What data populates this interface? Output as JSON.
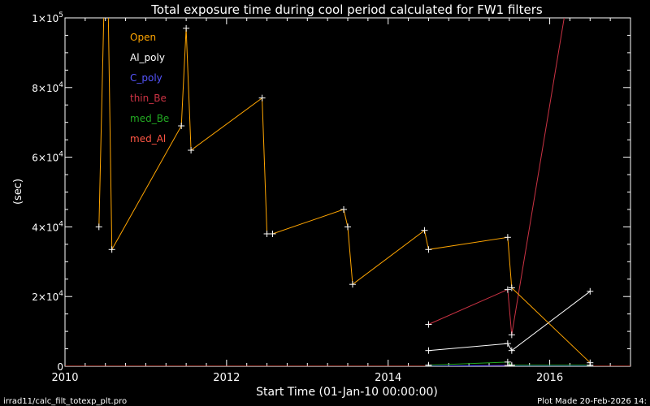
{
  "chart_data": {
    "type": "line",
    "title": "Total exposure time during cool period calculated for FW1 filters",
    "xlabel": "Start Time (01-Jan-10 00:00:00)",
    "ylabel": "(sec)",
    "xlim": [
      2010.0,
      2017.0
    ],
    "ylim": [
      0,
      100000
    ],
    "x_ticks": [
      {
        "value": 2010,
        "label": "2010"
      },
      {
        "value": 2012,
        "label": "2012"
      },
      {
        "value": 2014,
        "label": "2014"
      },
      {
        "value": 2016,
        "label": "2016"
      }
    ],
    "y_ticks": [
      {
        "value": 0,
        "mantissa": "0",
        "exp": ""
      },
      {
        "value": 20000,
        "mantissa": "2×10",
        "exp": "4"
      },
      {
        "value": 40000,
        "mantissa": "4×10",
        "exp": "4"
      },
      {
        "value": 60000,
        "mantissa": "6×10",
        "exp": "4"
      },
      {
        "value": 80000,
        "mantissa": "8×10",
        "exp": "4"
      },
      {
        "value": 100000,
        "mantissa": "1×10",
        "exp": "5"
      }
    ],
    "grid": false,
    "legend_position": "top-left",
    "footer_left": "irrad11/calc_filt_totexp_plt.pro",
    "footer_right": "Plot Made 20-Feb-2026 14:",
    "series": [
      {
        "name": "Open",
        "color": "#ffa500",
        "points": [
          [
            2010.42,
            40000
          ],
          [
            2010.49,
            110000
          ],
          [
            2010.53,
            110000
          ],
          [
            2010.58,
            33500
          ],
          [
            2011.44,
            69000
          ],
          [
            2011.5,
            97000
          ],
          [
            2011.56,
            62000
          ],
          [
            2012.44,
            77000
          ],
          [
            2012.5,
            38000
          ],
          [
            2012.57,
            38000
          ],
          [
            2013.45,
            45000
          ],
          [
            2013.5,
            40000
          ],
          [
            2013.56,
            23500
          ],
          [
            2014.45,
            39000
          ],
          [
            2014.5,
            33500
          ],
          [
            2015.48,
            37000
          ],
          [
            2015.53,
            22500
          ],
          [
            2016.5,
            1000
          ]
        ]
      },
      {
        "name": "Al_poly",
        "color": "#ffffff",
        "points": [
          [
            2014.5,
            4500
          ],
          [
            2015.48,
            6500
          ],
          [
            2015.53,
            4500
          ],
          [
            2016.5,
            21500
          ]
        ]
      },
      {
        "name": "C_poly",
        "color": "#5555ff",
        "points": [
          [
            2014.5,
            0
          ],
          [
            2015.48,
            200
          ],
          [
            2015.53,
            0
          ],
          [
            2016.5,
            0
          ]
        ]
      },
      {
        "name": "thin_Be",
        "color": "#cc3344",
        "points": [
          [
            2014.5,
            12000
          ],
          [
            2015.48,
            22000
          ],
          [
            2015.53,
            9000
          ],
          [
            2016.2,
            103000
          ]
        ]
      },
      {
        "name": "med_Be",
        "color": "#22aa22",
        "points": [
          [
            2014.5,
            300
          ],
          [
            2015.48,
            1200
          ],
          [
            2015.53,
            300
          ],
          [
            2016.5,
            300
          ]
        ]
      },
      {
        "name": "med_Al",
        "color": "#ff5544",
        "points": [
          [
            2010.0,
            0
          ],
          [
            2017.0,
            0
          ]
        ]
      }
    ]
  }
}
